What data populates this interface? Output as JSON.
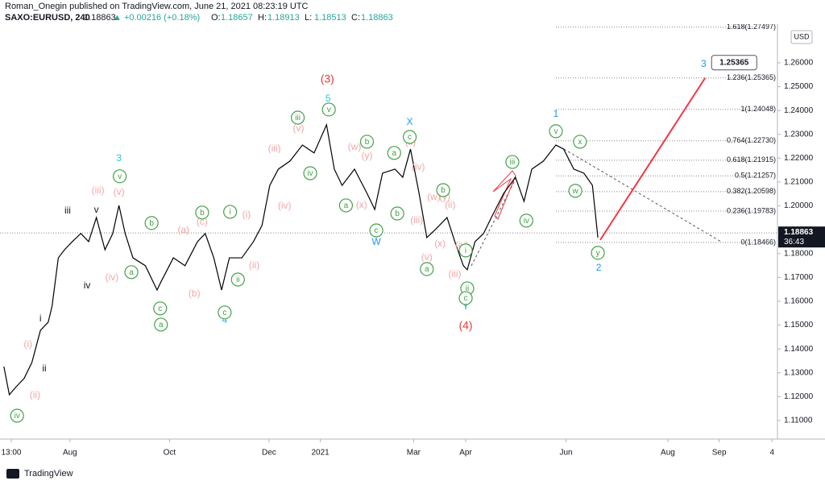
{
  "header": {
    "author_line": "Roman_Onegin published on TradingView.com, June 21, 2021 08:23:19 UTC",
    "symbol": "SAXO:EURUSD, 240",
    "price": "1.18863",
    "change": "▲ +0.00216 (+0.18%)",
    "ohlc": [
      {
        "key": "O:",
        "value": "1.18657"
      },
      {
        "key": "H:",
        "value": "1.18913"
      },
      {
        "key": "L:",
        "value": "1.18513"
      },
      {
        "key": "C:",
        "value": "1.18863"
      }
    ],
    "currency": "USD",
    "countdown": "36:43"
  },
  "footer": {
    "brand": "TradingView"
  },
  "chart_data": {
    "type": "line",
    "xlim": [
      0,
      100
    ],
    "ylim": [
      1.1022,
      1.2762
    ],
    "xticks": [
      {
        "value": 1.45,
        "label": "13:00"
      },
      {
        "value": 9.0,
        "label": "Aug"
      },
      {
        "value": 21.8,
        "label": "Oct"
      },
      {
        "value": 34.6,
        "label": "Dec"
      },
      {
        "value": 41.2,
        "label": "2021"
      },
      {
        "value": 53.2,
        "label": "Mar"
      },
      {
        "value": 59.9,
        "label": "Apr"
      },
      {
        "value": 72.8,
        "label": "Jun"
      },
      {
        "value": 85.9,
        "label": "Aug"
      },
      {
        "value": 92.5,
        "label": "Sep"
      },
      {
        "value": 99.3,
        "label": "4"
      }
    ],
    "yticks": [
      {
        "value": 1.11,
        "label": "1.11000"
      },
      {
        "value": 1.12,
        "label": "1.12000"
      },
      {
        "value": 1.13,
        "label": "1.13000"
      },
      {
        "value": 1.14,
        "label": "1.14000"
      },
      {
        "value": 1.15,
        "label": "1.15000"
      },
      {
        "value": 1.16,
        "label": "1.16000"
      },
      {
        "value": 1.17,
        "label": "1.17000"
      },
      {
        "value": 1.18,
        "label": "1.18000"
      },
      {
        "value": 1.19,
        "label": "1.19000"
      },
      {
        "value": 1.2,
        "label": "1.20000"
      },
      {
        "value": 1.21,
        "label": "1.21000"
      },
      {
        "value": 1.22,
        "label": "1.22000"
      },
      {
        "value": 1.23,
        "label": "1.23000"
      },
      {
        "value": 1.24,
        "label": "1.24000"
      },
      {
        "value": 1.25,
        "label": "1.25000"
      },
      {
        "value": 1.26,
        "label": "1.26000"
      }
    ],
    "x": [
      0.5,
      1.2,
      2.1,
      3.1,
      4.1,
      5.2,
      6.2,
      6.7,
      7.5,
      8.3,
      9.3,
      10.4,
      11.4,
      12.4,
      13.5,
      14.5,
      15.3,
      16.1,
      17.1,
      18.7,
      20.2,
      20.7,
      22.3,
      23.8,
      25.4,
      26.4,
      27.5,
      28.5,
      29.5,
      31.1,
      32.6,
      33.7,
      34.7,
      35.8,
      37.3,
      38.9,
      40.4,
      42.0,
      43.0,
      44.0,
      45.6,
      47.2,
      48.2,
      49.2,
      50.8,
      51.8,
      52.8,
      53.9,
      54.9,
      56.0,
      57.5,
      58.5,
      59.6,
      60.1,
      61.1,
      62.2,
      63.2,
      64.8,
      66.3,
      67.4,
      68.4,
      69.9,
      71.5,
      72.5,
      73.8,
      75.1,
      76.2,
      76.9
    ],
    "series": [
      {
        "name": "SAXO:EURUSD",
        "color": "#000000",
        "values": [
          1.1326,
          1.1208,
          1.1242,
          1.1276,
          1.1343,
          1.1478,
          1.1512,
          1.158,
          1.1782,
          1.1816,
          1.185,
          1.1884,
          1.185,
          1.1951,
          1.1816,
          1.1884,
          1.2002,
          1.1884,
          1.1782,
          1.1749,
          1.1647,
          1.1681,
          1.1782,
          1.1749,
          1.185,
          1.1884,
          1.1782,
          1.1647,
          1.1782,
          1.1782,
          1.185,
          1.1918,
          1.2086,
          1.2154,
          1.2188,
          1.2255,
          1.2222,
          1.234,
          1.2154,
          1.2086,
          1.2154,
          1.2053,
          1.1985,
          1.2137,
          1.2154,
          1.212,
          1.2238,
          1.2053,
          1.1867,
          1.1901,
          1.1951,
          1.185,
          1.1749,
          1.1732,
          1.185,
          1.1884,
          1.1951,
          1.2053,
          1.212,
          1.2019,
          1.2154,
          1.2188,
          1.2255,
          1.2238,
          1.2154,
          1.2137,
          1.2086,
          1.1867
        ]
      }
    ],
    "last_price": {
      "value": 1.18863,
      "label": "1.18863"
    },
    "fib_levels": [
      {
        "value": 1.18466,
        "label": "0(1.18466)"
      },
      {
        "value": 1.19783,
        "label": "0.236(1.19783)"
      },
      {
        "value": 1.20598,
        "label": "0.382(1.20598)"
      },
      {
        "value": 1.21257,
        "label": "0.5(1.21257)"
      },
      {
        "value": 1.21915,
        "label": "0.618(1.21915)"
      },
      {
        "value": 1.2273,
        "label": "0.764(1.22730)"
      },
      {
        "value": 1.24048,
        "label": "1(1.24048)"
      },
      {
        "value": 1.25365,
        "label": "1.236(1.25365)"
      },
      {
        "value": 1.27497,
        "label": "1.618(1.27497)"
      }
    ],
    "projection": {
      "color": "#f23645",
      "x": [
        77.2,
        90.7
      ],
      "y": [
        1.1857,
        1.25365
      ],
      "target_label": "1.25365"
    },
    "annotation_groups": [
      {
        "color": "#e53935",
        "circled": false,
        "items": [
          {
            "text": "(3)",
            "x": 42.1,
            "y": 1.2529
          },
          {
            "text": "(4)",
            "x": 59.9,
            "y": 1.1495
          }
        ]
      },
      {
        "color": "#26c6da",
        "circled": false,
        "items": [
          {
            "text": "5",
            "x": 42.2,
            "y": 1.2448
          },
          {
            "text": "3",
            "x": 15.3,
            "y": 1.2198
          },
          {
            "text": "4",
            "x": 28.9,
            "y": 1.1519
          }
        ]
      },
      {
        "color": "#2196f3",
        "circled": false,
        "items": [
          {
            "text": "X",
            "x": 52.7,
            "y": 1.235
          },
          {
            "text": "W",
            "x": 48.4,
            "y": 1.1847
          },
          {
            "text": "Y",
            "x": 59.9,
            "y": 1.1576
          },
          {
            "text": "1",
            "x": 71.5,
            "y": 1.2384
          },
          {
            "text": "2",
            "x": 77.0,
            "y": 1.1739
          },
          {
            "text": "3",
            "x": 90.5,
            "y": 1.2593
          }
        ]
      },
      {
        "color": "#131722",
        "circled": false,
        "items": [
          {
            "text": "iii",
            "x": 8.7,
            "y": 1.1978
          },
          {
            "text": "v",
            "x": 12.4,
            "y": 1.1982
          },
          {
            "text": "iv",
            "x": 11.2,
            "y": 1.1664
          },
          {
            "text": "i",
            "x": 5.2,
            "y": 1.1526
          },
          {
            "text": "ii",
            "x": 5.7,
            "y": 1.1316
          }
        ]
      },
      {
        "color": "#f4a6a6",
        "circled": false,
        "items": [
          {
            "text": "(i)",
            "x": 3.6,
            "y": 1.1418
          },
          {
            "text": "(ii)",
            "x": 4.5,
            "y": 1.1205
          },
          {
            "text": "(iii)",
            "x": 12.6,
            "y": 1.2063
          },
          {
            "text": "(iv)",
            "x": 14.4,
            "y": 1.1698
          },
          {
            "text": "(v)",
            "x": 15.3,
            "y": 1.2056
          },
          {
            "text": "(a)",
            "x": 23.6,
            "y": 1.1897
          },
          {
            "text": "(b)",
            "x": 25.0,
            "y": 1.163
          },
          {
            "text": "(c)",
            "x": 26.0,
            "y": 1.1931
          },
          {
            "text": "(i)",
            "x": 31.7,
            "y": 1.1961
          },
          {
            "text": "(ii)",
            "x": 32.7,
            "y": 1.1749
          },
          {
            "text": "(iii)",
            "x": 35.3,
            "y": 1.2239
          },
          {
            "text": "(iv)",
            "x": 36.6,
            "y": 1.1999
          },
          {
            "text": "(v)",
            "x": 38.4,
            "y": 1.2323
          },
          {
            "text": "(w)",
            "x": 45.6,
            "y": 1.2245
          },
          {
            "text": "(x)",
            "x": 46.5,
            "y": 1.2002
          },
          {
            "text": "(y)",
            "x": 47.2,
            "y": 1.2208
          },
          {
            "text": "(ii)",
            "x": 52.8,
            "y": 1.2266
          },
          {
            "text": "(iv)",
            "x": 53.8,
            "y": 1.2161
          },
          {
            "text": "(iii)",
            "x": 53.6,
            "y": 1.1938
          },
          {
            "text": "(w)",
            "x": 55.8,
            "y": 1.2036
          },
          {
            "text": "(y)",
            "x": 57.2,
            "y": 1.2036
          },
          {
            "text": "(ii)",
            "x": 57.9,
            "y": 1.2002
          },
          {
            "text": "(x)",
            "x": 56.6,
            "y": 1.184
          },
          {
            "text": "(v)",
            "x": 54.9,
            "y": 1.1782
          },
          {
            "text": "(iii)",
            "x": 58.5,
            "y": 1.1711
          },
          {
            "text": "(iv)",
            "x": 59.4,
            "y": 1.1833
          }
        ]
      },
      {
        "color": "#43a047",
        "circled": true,
        "items": [
          {
            "text": "iv",
            "x": 2.2,
            "y": 1.112
          },
          {
            "text": "v",
            "x": 15.4,
            "y": 1.2124
          },
          {
            "text": "b",
            "x": 19.5,
            "y": 1.1928
          },
          {
            "text": "a",
            "x": 16.9,
            "y": 1.1722
          },
          {
            "text": "c",
            "x": 20.6,
            "y": 1.157
          },
          {
            "text": "a",
            "x": 20.7,
            "y": 1.1502
          },
          {
            "text": "b",
            "x": 26.0,
            "y": 1.1972
          },
          {
            "text": "i",
            "x": 29.6,
            "y": 1.1975
          },
          {
            "text": "ii",
            "x": 30.6,
            "y": 1.1691
          },
          {
            "text": "c",
            "x": 28.9,
            "y": 1.1553
          },
          {
            "text": "iii",
            "x": 38.3,
            "y": 1.237
          },
          {
            "text": "v",
            "x": 42.3,
            "y": 1.2404
          },
          {
            "text": "iv",
            "x": 39.9,
            "y": 1.2137
          },
          {
            "text": "a",
            "x": 44.5,
            "y": 1.2002
          },
          {
            "text": "b",
            "x": 47.2,
            "y": 1.2269
          },
          {
            "text": "c",
            "x": 48.4,
            "y": 1.1897
          },
          {
            "text": "c",
            "x": 52.7,
            "y": 1.2289
          },
          {
            "text": "a",
            "x": 50.7,
            "y": 1.2222
          },
          {
            "text": "b",
            "x": 51.1,
            "y": 1.1968
          },
          {
            "text": "b",
            "x": 57.0,
            "y": 1.2066
          },
          {
            "text": "a",
            "x": 54.9,
            "y": 1.1735
          },
          {
            "text": "i",
            "x": 59.9,
            "y": 1.1813
          },
          {
            "text": "ii",
            "x": 60.1,
            "y": 1.1654
          },
          {
            "text": "c",
            "x": 59.9,
            "y": 1.1613
          },
          {
            "text": "iii",
            "x": 65.9,
            "y": 1.2184
          },
          {
            "text": "iv",
            "x": 67.7,
            "y": 1.1938
          },
          {
            "text": "v",
            "x": 71.5,
            "y": 1.2313
          },
          {
            "text": "x",
            "x": 74.6,
            "y": 1.2269
          },
          {
            "text": "w",
            "x": 74.0,
            "y": 1.2063
          },
          {
            "text": "y",
            "x": 76.9,
            "y": 1.1803
          }
        ]
      }
    ]
  }
}
